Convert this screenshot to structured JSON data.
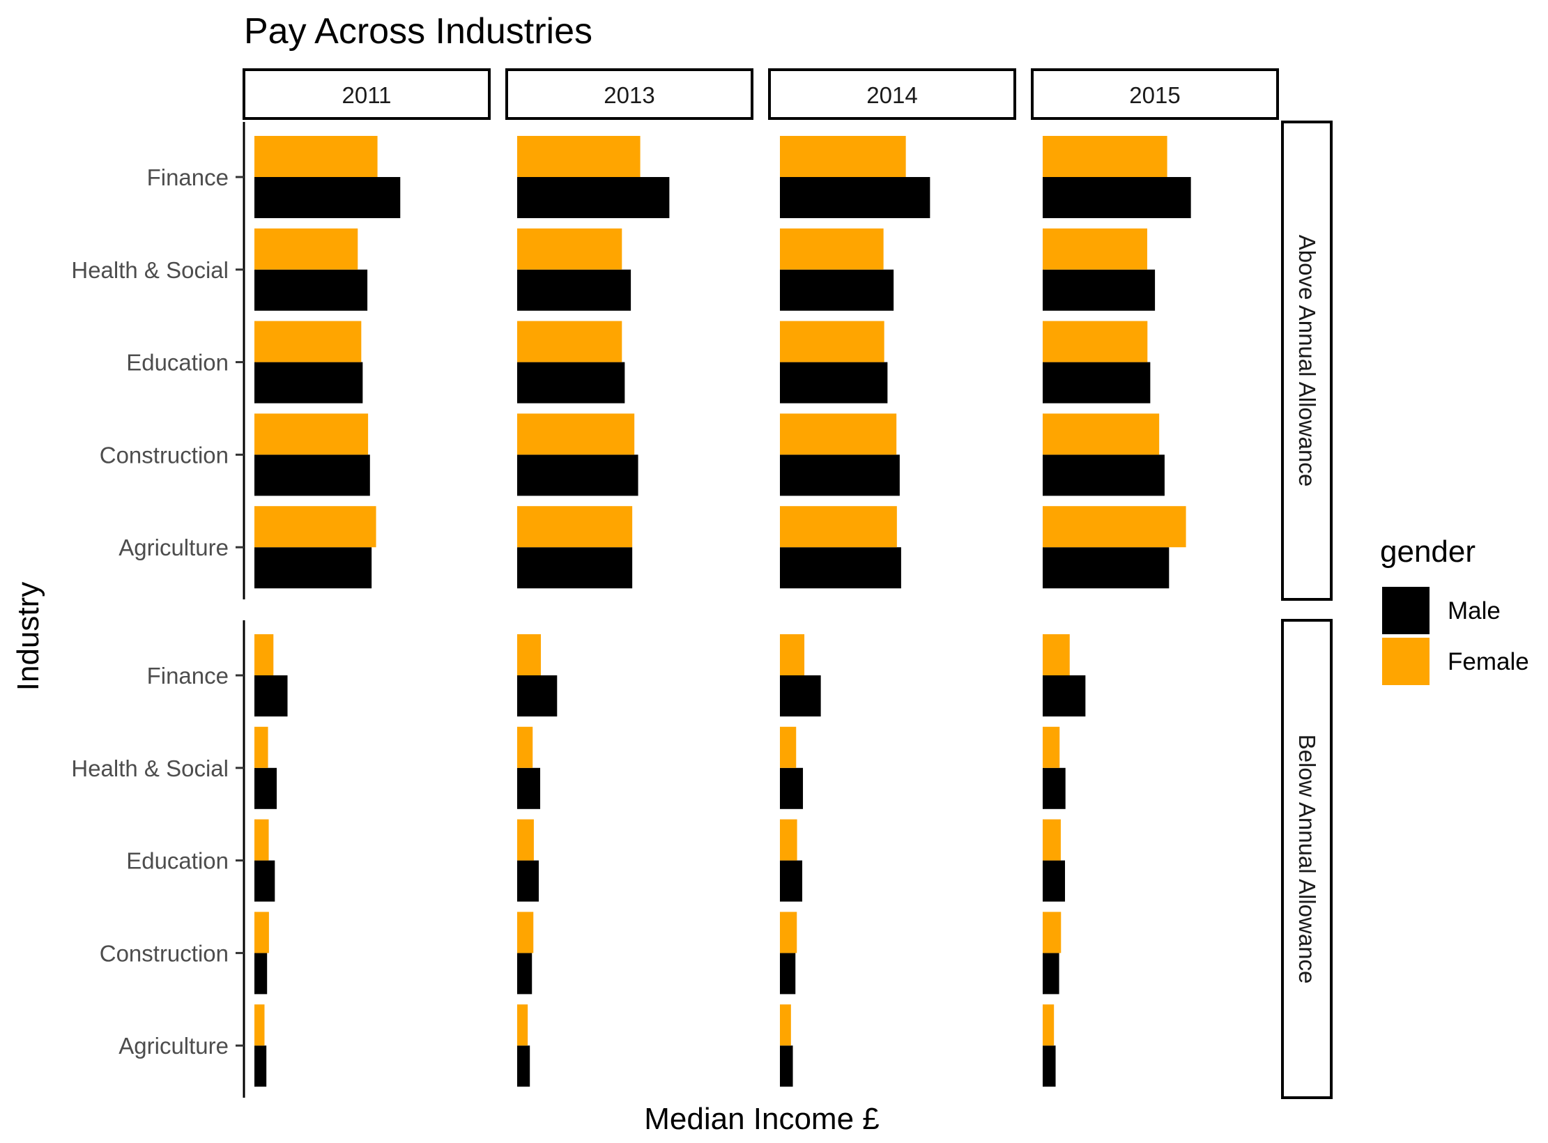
{
  "chart_data": {
    "type": "bar",
    "orientation": "horizontal",
    "title": "Pay Across Industries",
    "xlabel": "Median Income £",
    "ylabel": "Industry",
    "categories": [
      "Finance",
      "Health & Social",
      "Education",
      "Construction",
      "Agriculture"
    ],
    "facet_columns": [
      "2011",
      "2013",
      "2014",
      "2015"
    ],
    "facet_rows": [
      "Above Annual Allowance",
      "Below Annual Allowance"
    ],
    "x_ticks_shown": false,
    "xlim": [
      0,
      1
    ],
    "value_note": "",
    "legend": {
      "title": "gender",
      "position": "right",
      "entries": [
        {
          "name": "Male",
          "color": "#000000"
        },
        {
          "name": "Female",
          "color": "#FFA500"
        }
      ]
    },
    "panels": [
      {
        "year": "2011",
        "group": "Above Annual Allowance",
        "series": [
          {
            "name": "Male",
            "values": [
              0.621,
              0.481,
              0.461,
              0.492,
              0.499
            ]
          },
          {
            "name": "Female",
            "values": [
              0.524,
              0.44,
              0.455,
              0.484,
              0.518
            ]
          }
        ]
      },
      {
        "year": "2013",
        "group": "Above Annual Allowance",
        "series": [
          {
            "name": "Male",
            "values": [
              0.648,
              0.484,
              0.458,
              0.515,
              0.49
            ]
          },
          {
            "name": "Female",
            "values": [
              0.524,
              0.446,
              0.446,
              0.499,
              0.49
            ]
          }
        ]
      },
      {
        "year": "2014",
        "group": "Above Annual Allowance",
        "series": [
          {
            "name": "Male",
            "values": [
              0.639,
              0.484,
              0.458,
              0.51,
              0.516
            ]
          },
          {
            "name": "Female",
            "values": [
              0.536,
              0.441,
              0.444,
              0.496,
              0.498
            ]
          }
        ]
      },
      {
        "year": "2015",
        "group": "Above Annual Allowance",
        "series": [
          {
            "name": "Male",
            "values": [
              0.631,
              0.478,
              0.458,
              0.519,
              0.538
            ]
          },
          {
            "name": "Female",
            "values": [
              0.53,
              0.445,
              0.446,
              0.496,
              0.61
            ]
          }
        ]
      },
      {
        "year": "2011",
        "group": "Below Annual Allowance",
        "series": [
          {
            "name": "Male",
            "values": [
              0.141,
              0.095,
              0.087,
              0.054,
              0.051
            ]
          },
          {
            "name": "Female",
            "values": [
              0.081,
              0.058,
              0.061,
              0.062,
              0.043
            ]
          }
        ]
      },
      {
        "year": "2013",
        "group": "Below Annual Allowance",
        "series": [
          {
            "name": "Male",
            "values": [
              0.17,
              0.098,
              0.092,
              0.063,
              0.054
            ]
          },
          {
            "name": "Female",
            "values": [
              0.101,
              0.066,
              0.071,
              0.069,
              0.045
            ]
          }
        ]
      },
      {
        "year": "2014",
        "group": "Below Annual Allowance",
        "series": [
          {
            "name": "Male",
            "values": [
              0.174,
              0.098,
              0.095,
              0.066,
              0.055
            ]
          },
          {
            "name": "Female",
            "values": [
              0.104,
              0.069,
              0.073,
              0.072,
              0.047
            ]
          }
        ]
      },
      {
        "year": "2015",
        "group": "Below Annual Allowance",
        "series": [
          {
            "name": "Male",
            "values": [
              0.182,
              0.097,
              0.095,
              0.07,
              0.055
            ]
          },
          {
            "name": "Female",
            "values": [
              0.115,
              0.072,
              0.077,
              0.078,
              0.048
            ]
          }
        ]
      }
    ]
  }
}
